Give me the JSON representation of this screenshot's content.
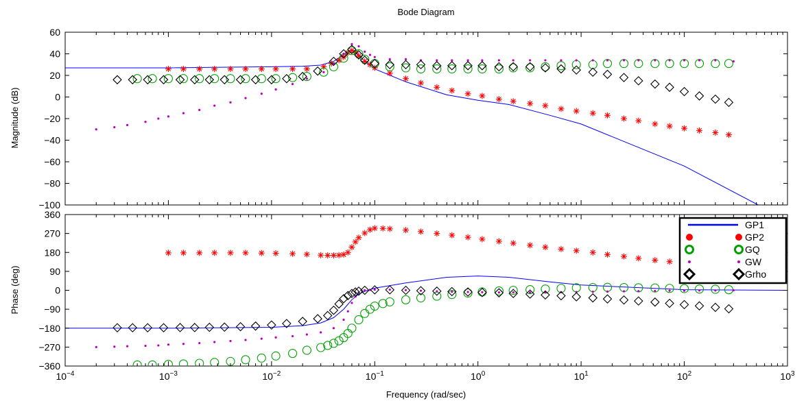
{
  "figure": {
    "title": "Bode Diagram",
    "xlabel": "Frequency  (rad/sec)",
    "ylabel_mag": "Magnitude (dB)",
    "ylabel_phase": "Phase (deg)"
  },
  "chart_data": [
    {
      "type": "line",
      "name": "magnitude",
      "title": "Bode Diagram",
      "ylabel": "Magnitude (dB)",
      "xscale": "log",
      "xlim": [
        0.0001,
        1000
      ],
      "ylim": [
        -100,
        60
      ],
      "yticks": [
        60,
        40,
        20,
        0,
        -20,
        -40,
        -60,
        -80,
        -100
      ],
      "grid": false,
      "series": [
        {
          "name": "GP1",
          "color": "#0000ff",
          "marker": "line",
          "x": [
            0.0001,
            0.001,
            0.01,
            0.02,
            0.03,
            0.04,
            0.05,
            0.06,
            0.07,
            0.08,
            0.1,
            0.2,
            0.5,
            1,
            2,
            5,
            10,
            100,
            520
          ],
          "y": [
            27,
            27,
            28,
            28.5,
            29.5,
            33,
            39,
            44,
            39,
            33,
            26,
            14,
            2,
            -3,
            -7,
            -17,
            -25,
            -64,
            -100
          ]
        },
        {
          "name": "GP2",
          "color": "#ff0000",
          "marker": "asterisk",
          "x": [
            0.001,
            0.0014,
            0.002,
            0.0028,
            0.004,
            0.0056,
            0.008,
            0.011,
            0.016,
            0.022,
            0.032,
            0.038,
            0.045,
            0.05,
            0.055,
            0.06,
            0.065,
            0.07,
            0.08,
            0.09,
            0.1,
            0.14,
            0.2,
            0.28,
            0.4,
            0.56,
            0.8,
            1.1,
            1.6,
            2.2,
            3.2,
            4.5,
            6.4,
            9,
            13,
            18,
            26,
            36,
            52,
            72,
            100,
            140,
            200,
            270
          ],
          "y": [
            26,
            26,
            26,
            26,
            26,
            26,
            26,
            26,
            26,
            26,
            28,
            31,
            34,
            37,
            41,
            43,
            41,
            38,
            33,
            30,
            27,
            22,
            17,
            13,
            9,
            6,
            3,
            1,
            -2,
            -4,
            -6,
            -8,
            -11,
            -13,
            -15,
            -17,
            -20,
            -22,
            -25,
            -27,
            -29,
            -31,
            -33,
            -35
          ]
        },
        {
          "name": "GQ",
          "color": "#00a000",
          "marker": "circle",
          "x": [
            0.0005,
            0.0007,
            0.001,
            0.0014,
            0.002,
            0.0028,
            0.004,
            0.0056,
            0.008,
            0.011,
            0.016,
            0.022,
            0.032,
            0.04,
            0.05,
            0.06,
            0.07,
            0.08,
            0.1,
            0.14,
            0.2,
            0.28,
            0.4,
            0.56,
            0.8,
            1.1,
            1.6,
            2.2,
            3.2,
            4.5,
            6.4,
            9,
            13,
            18,
            26,
            36,
            52,
            72,
            100,
            140,
            200,
            270
          ],
          "y": [
            17,
            17,
            17,
            17,
            17,
            17,
            17,
            17,
            17,
            17,
            18,
            19,
            23,
            28,
            36,
            43,
            40,
            35,
            31,
            28,
            27,
            26,
            26,
            26,
            26,
            26,
            26,
            27,
            27,
            28,
            29,
            30,
            30,
            31,
            31,
            31,
            31,
            31,
            31,
            31,
            31,
            31
          ]
        },
        {
          "name": "GW",
          "color": "#bb00bb",
          "marker": "dot",
          "x": [
            0.0002,
            0.0003,
            0.0004,
            0.0006,
            0.0008,
            0.001,
            0.0014,
            0.002,
            0.0028,
            0.004,
            0.0056,
            0.008,
            0.011,
            0.016,
            0.022,
            0.032,
            0.04,
            0.05,
            0.06,
            0.07,
            0.08,
            0.09,
            0.1,
            0.14,
            0.2,
            0.28,
            0.4,
            0.56,
            0.8,
            1.1,
            1.6,
            2.2,
            3.2,
            4.5,
            6.4,
            9,
            13,
            18,
            26,
            36,
            52,
            72,
            100,
            140,
            200,
            300
          ],
          "y": [
            -30,
            -28,
            -26,
            -23,
            -20,
            -18,
            -15,
            -12,
            -8,
            -5,
            -1,
            3,
            7,
            12,
            17,
            23,
            31,
            40,
            49,
            47,
            42,
            39,
            37,
            35,
            35,
            34,
            34,
            34,
            34,
            34,
            34,
            34,
            34,
            34,
            34,
            34,
            34,
            34,
            34,
            34,
            34,
            34,
            34,
            34,
            34,
            33
          ]
        },
        {
          "name": "Grho",
          "color": "#000000",
          "marker": "diamond",
          "x": [
            0.00032,
            0.00045,
            0.00063,
            0.0009,
            0.0013,
            0.0018,
            0.0025,
            0.0035,
            0.005,
            0.007,
            0.01,
            0.014,
            0.02,
            0.028,
            0.04,
            0.05,
            0.06,
            0.07,
            0.08,
            0.1,
            0.14,
            0.2,
            0.28,
            0.4,
            0.56,
            0.8,
            1.1,
            1.6,
            2.2,
            3.2,
            4.5,
            6.4,
            9,
            13,
            18,
            26,
            36,
            52,
            72,
            100,
            140,
            200,
            270
          ],
          "y": [
            16,
            16,
            16,
            16,
            16,
            16,
            16,
            16,
            16,
            16,
            16,
            17,
            19,
            24,
            33,
            40,
            44,
            39,
            34,
            31,
            30,
            30,
            30,
            29,
            29,
            29,
            29,
            28,
            28,
            28,
            27,
            26,
            25,
            23,
            21,
            18,
            15,
            12,
            9,
            5,
            1,
            -2,
            -5
          ]
        }
      ]
    },
    {
      "type": "line",
      "name": "phase",
      "xlabel": "Frequency  (rad/sec)",
      "ylabel": "Phase (deg)",
      "xscale": "log",
      "xlim": [
        0.0001,
        1000
      ],
      "ylim": [
        -360,
        360
      ],
      "yticks": [
        360,
        270,
        180,
        90,
        0,
        -90,
        -180,
        -270,
        -360
      ],
      "xticks": [
        0.0001,
        0.001,
        0.01,
        0.1,
        1,
        10,
        100,
        1000
      ],
      "xtick_labels": [
        {
          "base": "10",
          "exp": "−4"
        },
        {
          "base": "10",
          "exp": "−3"
        },
        {
          "base": "10",
          "exp": "−2"
        },
        {
          "base": "10",
          "exp": "−1"
        },
        {
          "base": "10",
          "exp": "0"
        },
        {
          "base": "10",
          "exp": "1"
        },
        {
          "base": "10",
          "exp": "2"
        },
        {
          "base": "10",
          "exp": "3"
        }
      ],
      "grid": false,
      "legend": {
        "placement": "top-right",
        "entries": [
          "GP1",
          "GP2",
          "GQ",
          "GW",
          "Grho"
        ]
      },
      "series": [
        {
          "name": "GP1",
          "color": "#0000ff",
          "marker": "line",
          "x": [
            0.0001,
            0.001,
            0.01,
            0.02,
            0.03,
            0.04,
            0.05,
            0.06,
            0.07,
            0.08,
            0.1,
            0.2,
            0.5,
            1,
            2,
            5,
            10,
            100,
            1000
          ],
          "y": [
            -180,
            -180,
            -176,
            -168,
            -155,
            -130,
            -90,
            -45,
            -18,
            -5,
            10,
            35,
            62,
            68,
            62,
            40,
            25,
            3,
            0
          ]
        },
        {
          "name": "GP2",
          "color": "#ff0000",
          "marker": "asterisk",
          "x": [
            0.001,
            0.0014,
            0.002,
            0.0028,
            0.004,
            0.0056,
            0.008,
            0.011,
            0.016,
            0.022,
            0.03,
            0.035,
            0.04,
            0.045,
            0.05,
            0.055,
            0.06,
            0.065,
            0.07,
            0.08,
            0.09,
            0.1,
            0.12,
            0.14,
            0.2,
            0.28,
            0.4,
            0.56,
            0.8,
            1.1,
            1.6,
            2.2,
            3.2,
            4.5,
            6.4,
            9,
            13,
            18,
            26,
            36,
            52,
            72,
            100,
            140,
            200,
            270
          ],
          "y": [
            178,
            178,
            178,
            178,
            178,
            178,
            177,
            176,
            174,
            171,
            167,
            166,
            166,
            167,
            170,
            180,
            205,
            230,
            250,
            272,
            288,
            295,
            294,
            292,
            286,
            279,
            270,
            262,
            252,
            243,
            233,
            224,
            214,
            205,
            196,
            188,
            180,
            170,
            161,
            152,
            143,
            136,
            128,
            120,
            110,
            100
          ]
        },
        {
          "name": "GQ",
          "color": "#00a000",
          "marker": "circle",
          "x": [
            0.0005,
            0.0007,
            0.001,
            0.0014,
            0.002,
            0.0028,
            0.004,
            0.0056,
            0.008,
            0.011,
            0.016,
            0.022,
            0.03,
            0.035,
            0.04,
            0.045,
            0.05,
            0.055,
            0.06,
            0.07,
            0.08,
            0.09,
            0.1,
            0.12,
            0.14,
            0.2,
            0.28,
            0.4,
            0.56,
            0.8,
            1.1,
            1.6,
            2.2,
            3.2,
            4.5,
            6.4,
            9,
            13,
            18,
            26,
            36,
            52,
            72,
            100,
            140,
            200,
            270
          ],
          "y": [
            -355,
            -355,
            -352,
            -350,
            -347,
            -343,
            -338,
            -330,
            -322,
            -312,
            -300,
            -285,
            -272,
            -262,
            -252,
            -240,
            -225,
            -205,
            -180,
            -140,
            -110,
            -90,
            -75,
            -63,
            -55,
            -45,
            -36,
            -28,
            -20,
            -13,
            -8,
            -3,
            0,
            3,
            6,
            9,
            12,
            13,
            14,
            13,
            12,
            11,
            9,
            8,
            6,
            5,
            3
          ]
        },
        {
          "name": "GW",
          "color": "#bb00bb",
          "marker": "dot",
          "x": [
            0.0002,
            0.0003,
            0.0004,
            0.0006,
            0.0008,
            0.001,
            0.0014,
            0.002,
            0.0028,
            0.004,
            0.0056,
            0.008,
            0.011,
            0.016,
            0.022,
            0.03,
            0.04,
            0.05,
            0.055,
            0.06,
            0.065,
            0.07,
            0.08,
            0.09,
            0.1,
            0.14,
            0.2,
            0.28,
            0.4,
            0.56,
            0.8,
            1.1,
            1.6,
            2.2,
            3.2,
            4.5,
            6.4,
            9,
            13,
            18,
            26,
            36,
            52,
            72,
            100,
            140,
            200,
            300
          ],
          "y": [
            -270,
            -268,
            -266,
            -264,
            -262,
            -258,
            -255,
            -251,
            -246,
            -241,
            -236,
            -230,
            -224,
            -218,
            -210,
            -200,
            -180,
            -140,
            -100,
            -60,
            -30,
            -10,
            0,
            2,
            3,
            3,
            1,
            -2,
            -5,
            -7,
            -8,
            -9,
            -10,
            -10,
            -10,
            -10,
            -9,
            -8,
            -7,
            -6,
            -5,
            -4,
            -3,
            -2,
            -2,
            -1,
            -1,
            0
          ]
        },
        {
          "name": "Grho",
          "color": "#000000",
          "marker": "diamond",
          "x": [
            0.00032,
            0.00045,
            0.00063,
            0.0009,
            0.0013,
            0.0018,
            0.0025,
            0.0035,
            0.005,
            0.007,
            0.01,
            0.014,
            0.02,
            0.028,
            0.035,
            0.04,
            0.045,
            0.05,
            0.055,
            0.06,
            0.065,
            0.07,
            0.08,
            0.1,
            0.14,
            0.2,
            0.28,
            0.4,
            0.56,
            0.8,
            1.1,
            1.6,
            2.2,
            3.2,
            4.5,
            6.4,
            9,
            13,
            18,
            26,
            36,
            52,
            72,
            100,
            140,
            200,
            270
          ],
          "y": [
            -178,
            -178,
            -178,
            -178,
            -177,
            -177,
            -176,
            -175,
            -173,
            -170,
            -165,
            -158,
            -148,
            -135,
            -120,
            -95,
            -65,
            -40,
            -25,
            -15,
            -8,
            -4,
            0,
            2,
            2,
            0,
            -2,
            -4,
            -6,
            -8,
            -10,
            -12,
            -15,
            -18,
            -22,
            -26,
            -31,
            -36,
            -41,
            -46,
            -51,
            -56,
            -62,
            -68,
            -74,
            -81,
            -88
          ]
        }
      ]
    }
  ]
}
